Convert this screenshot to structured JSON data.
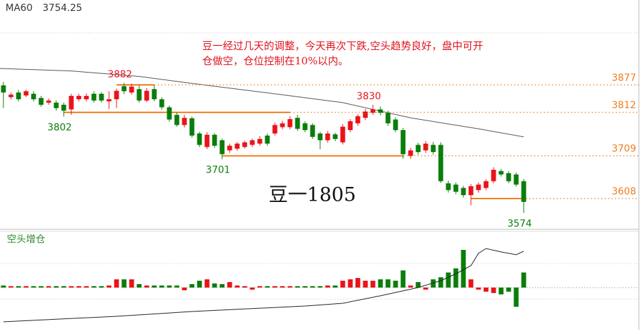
{
  "chart_data": [
    {
      "type": "candlestick",
      "ma_name": "MA60",
      "ma_value": 3754.25,
      "title": "豆一1805",
      "annotation": [
        "豆一经过几天的调整，今天再次下跌,空头趋势良好，盘中可开",
        "仓做空，仓位控制在10%以内。"
      ],
      "up_color": "#e8141a",
      "down_color": "#0a7d0a",
      "level_color": "#f07c1e",
      "ma_color": "#555555",
      "ylim": [
        3535,
        4078
      ],
      "candles": [
        [
          3876,
          3884,
          3822,
          3859
        ],
        [
          3848,
          3859,
          3843,
          3854
        ],
        [
          3859,
          3865,
          3838,
          3843
        ],
        [
          3852,
          3866,
          3848,
          3862
        ],
        [
          3856,
          3862,
          3838,
          3843
        ],
        [
          3846,
          3851,
          3825,
          3830
        ],
        [
          3835,
          3845,
          3830,
          3840
        ],
        [
          3835,
          3840,
          3816,
          3822
        ],
        [
          3830,
          3835,
          3802,
          3816
        ],
        [
          3819,
          3856,
          3806,
          3851
        ],
        [
          3843,
          3856,
          3838,
          3851
        ],
        [
          3843,
          3857,
          3838,
          3851
        ],
        [
          3856,
          3862,
          3835,
          3840
        ],
        [
          3856,
          3860,
          3835,
          3840
        ],
        [
          3838,
          3862,
          3820,
          3843
        ],
        [
          3843,
          3868,
          3822,
          3863
        ],
        [
          3874,
          3882,
          3855,
          3862
        ],
        [
          3859,
          3880,
          3854,
          3873
        ],
        [
          3867,
          3876,
          3835,
          3840
        ],
        [
          3840,
          3870,
          3836,
          3863
        ],
        [
          3867,
          3876,
          3838,
          3843
        ],
        [
          3843,
          3848,
          3818,
          3824
        ],
        [
          3824,
          3828,
          3790,
          3795
        ],
        [
          3806,
          3812,
          3778,
          3782
        ],
        [
          3782,
          3806,
          3776,
          3799
        ],
        [
          3798,
          3802,
          3752,
          3757
        ],
        [
          3762,
          3766,
          3730,
          3735
        ],
        [
          3730,
          3765,
          3725,
          3759
        ],
        [
          3759,
          3763,
          3728,
          3733
        ],
        [
          3746,
          3750,
          3701,
          3713
        ],
        [
          3722,
          3738,
          3716,
          3733
        ],
        [
          3726,
          3742,
          3721,
          3738
        ],
        [
          3730,
          3745,
          3726,
          3741
        ],
        [
          3735,
          3750,
          3730,
          3746
        ],
        [
          3738,
          3756,
          3733,
          3749
        ],
        [
          3757,
          3762,
          3733,
          3738
        ],
        [
          3762,
          3788,
          3757,
          3782
        ],
        [
          3777,
          3792,
          3772,
          3786
        ],
        [
          3777,
          3803,
          3772,
          3796
        ],
        [
          3799,
          3806,
          3768,
          3773
        ],
        [
          3786,
          3791,
          3765,
          3770
        ],
        [
          3782,
          3786,
          3749,
          3754
        ],
        [
          3762,
          3766,
          3725,
          3746
        ],
        [
          3746,
          3768,
          3740,
          3762
        ],
        [
          3760,
          3764,
          3744,
          3749
        ],
        [
          3741,
          3784,
          3736,
          3778
        ],
        [
          3770,
          3796,
          3765,
          3791
        ],
        [
          3786,
          3808,
          3780,
          3803
        ],
        [
          3799,
          3820,
          3794,
          3814
        ],
        [
          3811,
          3830,
          3806,
          3819
        ],
        [
          3819,
          3826,
          3805,
          3811
        ],
        [
          3811,
          3816,
          3780,
          3786
        ],
        [
          3795,
          3800,
          3765,
          3770
        ],
        [
          3770,
          3775,
          3702,
          3713
        ],
        [
          3709,
          3728,
          3702,
          3722
        ],
        [
          3735,
          3740,
          3712,
          3718
        ],
        [
          3722,
          3744,
          3716,
          3738
        ],
        [
          3735,
          3742,
          3712,
          3718
        ],
        [
          3735,
          3741,
          3645,
          3649
        ],
        [
          3644,
          3650,
          3622,
          3628
        ],
        [
          3641,
          3646,
          3618,
          3624
        ],
        [
          3633,
          3638,
          3610,
          3616
        ],
        [
          3616,
          3642,
          3592,
          3637
        ],
        [
          3628,
          3646,
          3622,
          3641
        ],
        [
          3633,
          3654,
          3628,
          3649
        ],
        [
          3649,
          3682,
          3644,
          3676
        ],
        [
          3673,
          3678,
          3660,
          3665
        ],
        [
          3668,
          3673,
          3644,
          3649
        ],
        [
          3665,
          3670,
          3636,
          3641
        ],
        [
          3649,
          3654,
          3574,
          3600
        ]
      ],
      "ma_x": [
        -0.5,
        9,
        18,
        27,
        36,
        45,
        54,
        63,
        69
      ],
      "ma_values": [
        3916,
        3910,
        3897,
        3876,
        3856,
        3835,
        3799,
        3773,
        3754
      ],
      "levels": [
        {
          "value": 3877,
          "span": [
            15,
            20
          ]
        },
        {
          "value": 3812,
          "span": [
            8,
            38
          ]
        },
        {
          "value": 3709,
          "span": [
            29,
            53
          ]
        },
        {
          "value": 3608,
          "span": [
            62,
            69
          ]
        }
      ],
      "extremes": [
        {
          "value": 3882,
          "at": 16
        },
        {
          "value": 3802,
          "at": 8
        },
        {
          "value": 3701,
          "at": 29
        },
        {
          "value": 3830,
          "at": 49
        },
        {
          "value": 3574,
          "at": 69
        }
      ]
    },
    {
      "type": "bar",
      "title": "空头增仓",
      "ylim": [
        -62,
        80
      ],
      "values": [
        3,
        2,
        2,
        2,
        2,
        2,
        2,
        2,
        2,
        2,
        2,
        2,
        2,
        2,
        3,
        12,
        12,
        12,
        5,
        3,
        3,
        3,
        3,
        3,
        -4,
        5,
        10,
        12,
        6,
        5,
        8,
        3,
        2,
        -3,
        2,
        2,
        2,
        2,
        2,
        2,
        2,
        2,
        2,
        3,
        3,
        10,
        12,
        14,
        10,
        10,
        12,
        12,
        10,
        25,
        3,
        8,
        -3,
        12,
        15,
        22,
        28,
        55,
        12,
        -3,
        -6,
        -8,
        -10,
        -6,
        -28,
        22
      ],
      "line_x": [
        0,
        15,
        25,
        40,
        45,
        50,
        55,
        58,
        60,
        62,
        63,
        64,
        66,
        68,
        69
      ],
      "line_values": [
        -50,
        -42,
        -35,
        -27,
        -23,
        -12,
        0,
        10,
        20,
        32,
        50,
        57,
        52,
        48,
        53
      ],
      "line_color": "#222222"
    }
  ]
}
